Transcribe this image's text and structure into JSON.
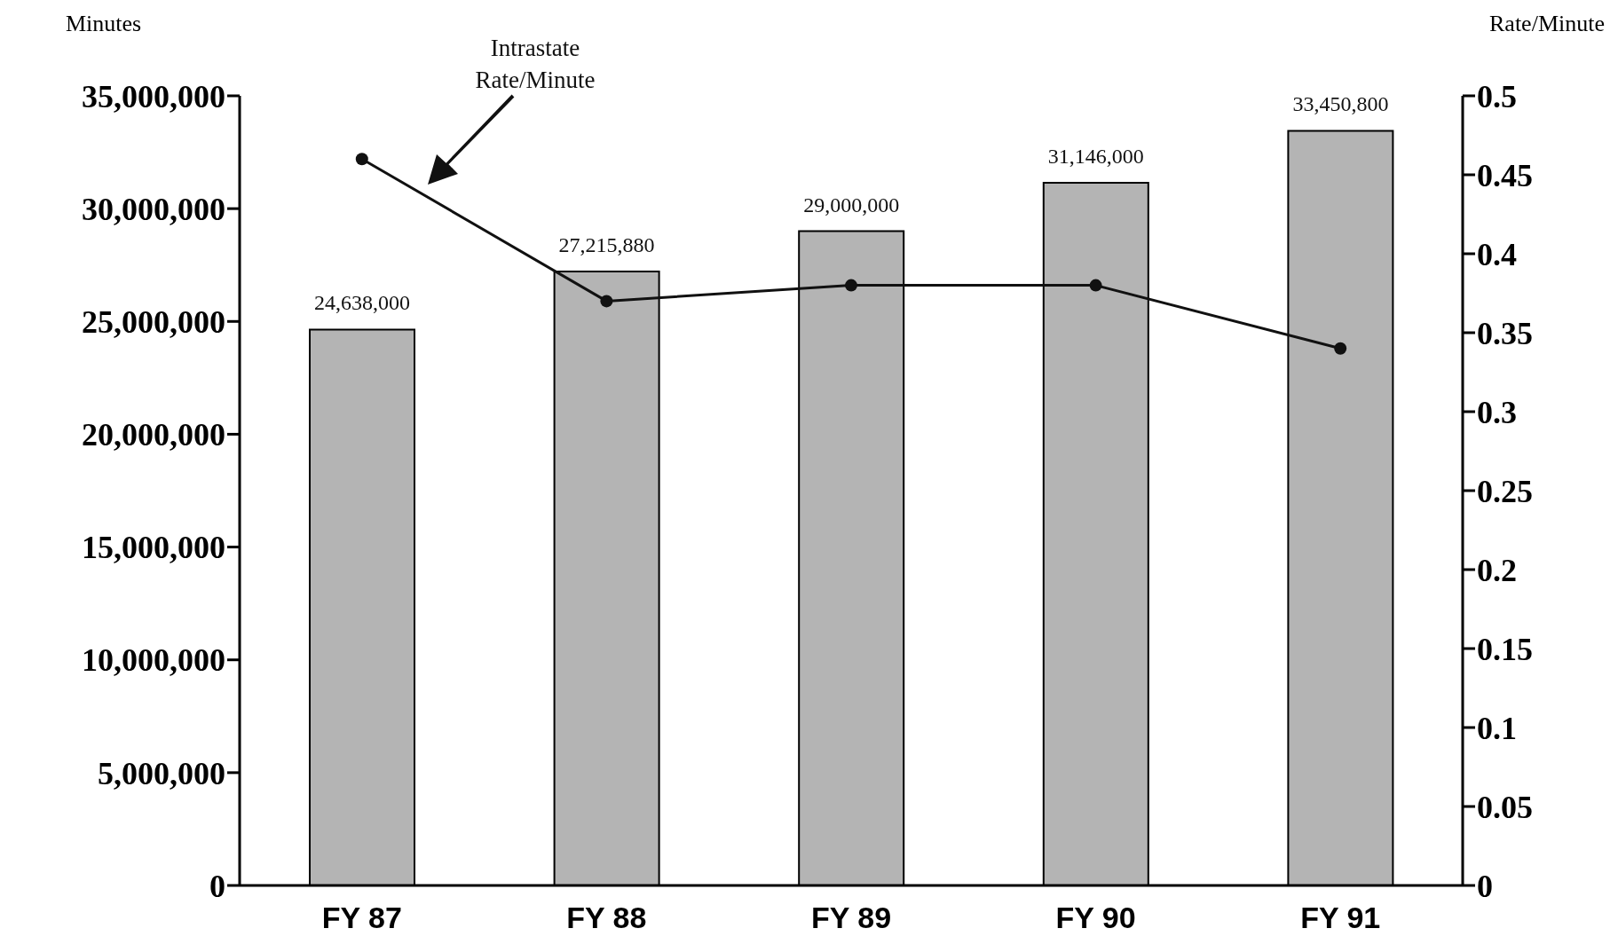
{
  "chart_data": {
    "type": "bar",
    "ylabel": "Minutes",
    "y2label": "Rate/Minute",
    "categories": [
      "FY 87",
      "FY 88",
      "FY 89",
      "FY 90",
      "FY 91"
    ],
    "series": [
      {
        "color": "#b4b4b4",
        "values": [
          24638000,
          27215880,
          29000000,
          31146000,
          33450800
        ],
        "value_labels": [
          "24,638,000",
          "27,215,880",
          "29,000,000",
          "31,146,000",
          "33,450,800"
        ]
      },
      {
        "type": "line",
        "name": "Intrastate Rate/Minute",
        "axis": "y2",
        "color": "#111111",
        "values": [
          0.46,
          0.37,
          0.38,
          0.38,
          0.34
        ]
      }
    ],
    "ylim": [
      0,
      35000000
    ],
    "yticks": [
      {
        "value": 0,
        "label": "0"
      },
      {
        "value": 5000000,
        "label": "5,000,000"
      },
      {
        "value": 10000000,
        "label": "10,000,000"
      },
      {
        "value": 15000000,
        "label": "15,000,000"
      },
      {
        "value": 20000000,
        "label": "20,000,000"
      },
      {
        "value": 25000000,
        "label": "25,000,000"
      },
      {
        "value": 30000000,
        "label": "30,000,000"
      },
      {
        "value": 35000000,
        "label": "35,000,000"
      }
    ],
    "y2lim": [
      0,
      0.5
    ],
    "y2ticks": [
      0,
      0.05,
      0.1,
      0.15,
      0.2,
      0.25,
      0.3,
      0.35,
      0.4,
      0.45,
      0.5
    ],
    "grid": false,
    "marker": "circle",
    "line_style": "solid"
  }
}
